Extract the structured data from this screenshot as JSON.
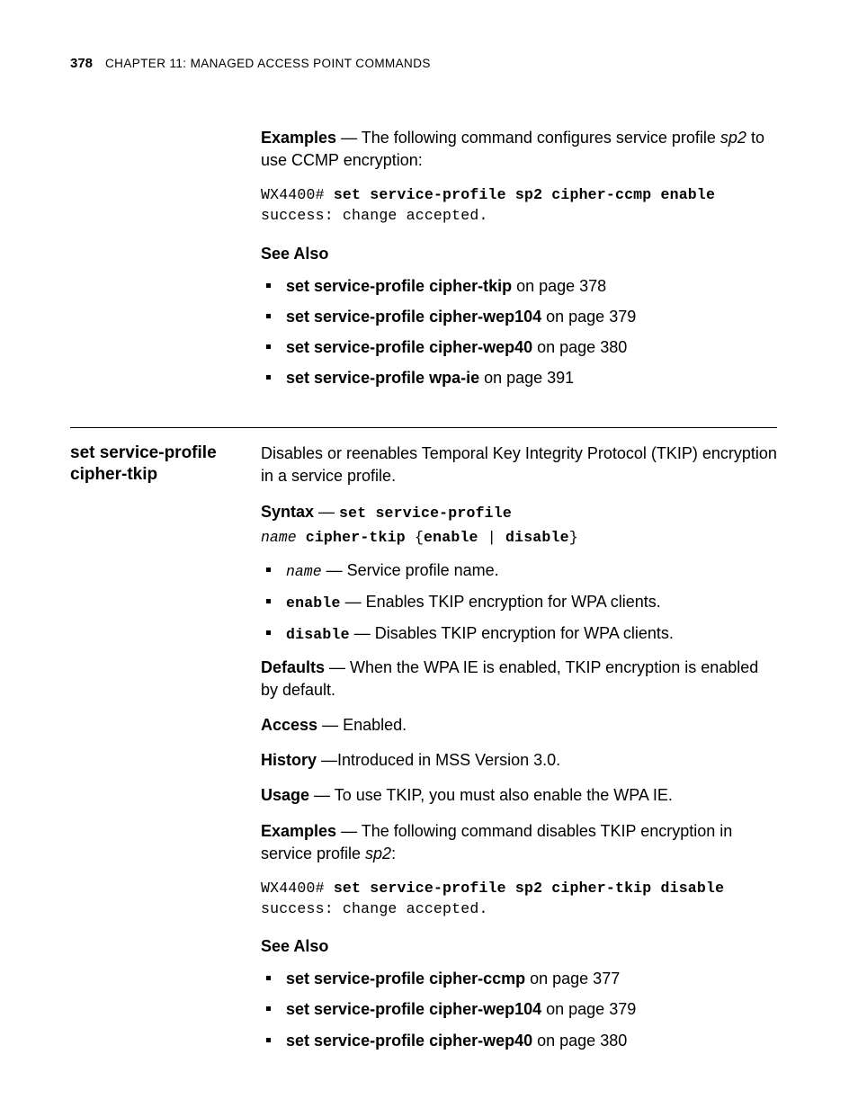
{
  "header": {
    "page_number": "378",
    "chapter_label": "Chapter 11: Managed Access Point Commands"
  },
  "section1": {
    "examples_label": "Examples",
    "examples_text_a": " — The following command configures service profile ",
    "examples_profile": "sp2",
    "examples_text_b": " to use CCMP encryption:",
    "code_prompt": "WX4400# ",
    "code_cmd": "set service-profile sp2 cipher-ccmp enable",
    "code_result": "success: change accepted.",
    "seealso_label": "See Also",
    "seealso": [
      {
        "cmd": "set service-profile cipher-tkip",
        "suffix": " on page 378"
      },
      {
        "cmd": "set service-profile cipher-wep104",
        "suffix": " on page 379"
      },
      {
        "cmd": "set service-profile cipher-wep40",
        "suffix": " on page 380"
      },
      {
        "cmd": "set service-profile wpa-ie",
        "suffix": " on page 391"
      }
    ]
  },
  "section2": {
    "heading_line1": "set service-profile",
    "heading_line2": "cipher-tkip",
    "intro": "Disables or reenables Temporal Key Integrity Protocol (TKIP) encryption in a service profile.",
    "syntax_label": "Syntax",
    "syntax_sep": " — ",
    "syntax_cmd_line1": "set service-profile",
    "syntax_name": "name",
    "syntax_mid": " cipher-tkip ",
    "syntax_brace_open": "{",
    "syntax_enable": "enable",
    "syntax_pipe": " | ",
    "syntax_disable": "disable",
    "syntax_brace_close": "}",
    "params": [
      {
        "name": "name",
        "name_style": "mono-ital",
        "desc": " — Service profile name."
      },
      {
        "name": "enable",
        "name_style": "mono-bold",
        "desc": " — Enables TKIP encryption for WPA clients."
      },
      {
        "name": "disable",
        "name_style": "mono-bold",
        "desc": " — Disables TKIP encryption for WPA clients."
      }
    ],
    "defaults_label": "Defaults",
    "defaults_text": " — When the WPA IE is enabled, TKIP encryption is enabled by default.",
    "access_label": "Access",
    "access_text": " — Enabled.",
    "history_label": "History",
    "history_text": " —Introduced in MSS Version 3.0.",
    "usage_label": "Usage",
    "usage_text": " — To use TKIP, you must also enable the WPA IE.",
    "examples_label": "Examples",
    "examples_text_a": " — The following command disables TKIP encryption in service profile ",
    "examples_profile": "sp2",
    "examples_text_b": ":",
    "code_prompt": "WX4400# ",
    "code_cmd": "set service-profile sp2 cipher-tkip disable",
    "code_result": "success: change accepted.",
    "seealso_label": "See Also",
    "seealso": [
      {
        "cmd": "set service-profile cipher-ccmp",
        "suffix": " on page 377"
      },
      {
        "cmd": "set service-profile cipher-wep104",
        "suffix": " on page 379"
      },
      {
        "cmd": "set service-profile cipher-wep40",
        "suffix": " on page 380"
      }
    ]
  }
}
